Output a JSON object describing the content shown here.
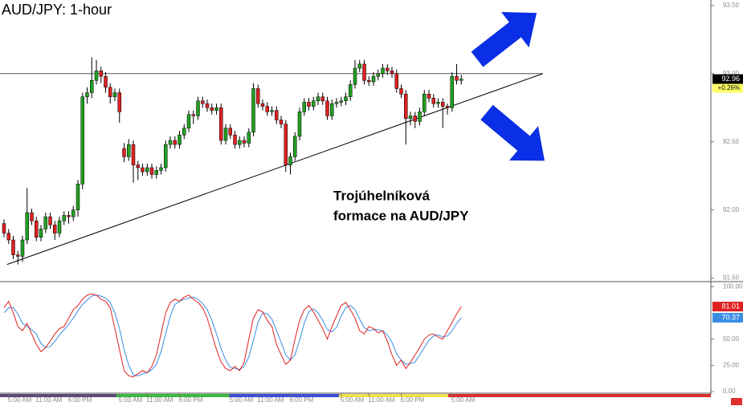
{
  "chart_data": {
    "type": "candlestick",
    "title": "AUD/JPY: 1-hour",
    "annotation": [
      "Trojúhelníková",
      "formace na AUD/JPY"
    ],
    "categories": [
      null,
      "5:00 AM",
      null,
      null,
      null,
      null,
      null,
      "11:00 AM",
      null,
      null,
      null,
      null,
      null,
      null,
      "6:00 PM",
      null,
      null,
      null,
      null,
      null,
      null,
      null,
      null,
      null,
      null,
      "5:00 AM",
      null,
      null,
      null,
      null,
      null,
      "11:00 AM",
      null,
      null,
      null,
      null,
      null,
      null,
      "6:00 PM",
      null,
      null,
      null,
      null,
      null,
      null,
      null,
      null,
      null,
      null,
      "5:00 AM",
      null,
      null,
      null,
      null,
      null,
      "11:00 AM",
      null,
      null,
      null,
      null,
      null,
      null,
      "6:00 PM",
      null,
      null,
      null,
      null,
      null,
      null,
      null,
      null,
      null,
      null,
      "5:00 AM",
      null,
      null,
      null,
      null,
      null,
      "11:00 AM",
      null,
      null,
      null,
      null,
      null,
      null,
      "6:00 PM",
      null,
      null,
      null,
      null,
      null,
      null,
      null,
      null,
      null,
      null,
      "5:00 AM",
      null,
      null
    ],
    "open": [
      91.9,
      91.83,
      91.78,
      91.67,
      91.66,
      91.78,
      91.98,
      91.92,
      91.8,
      91.86,
      91.95,
      91.89,
      91.83,
      91.92,
      91.96,
      91.95,
      92.0,
      92.19,
      92.83,
      92.86,
      92.95,
      93.02,
      92.98,
      92.9,
      92.83,
      92.86,
      92.45,
      92.39,
      92.48,
      92.33,
      92.31,
      92.28,
      92.31,
      92.26,
      92.29,
      92.31,
      92.48,
      92.51,
      92.48,
      92.55,
      92.6,
      92.7,
      92.69,
      92.8,
      92.78,
      92.75,
      92.73,
      92.75,
      92.51,
      92.6,
      92.55,
      92.48,
      92.51,
      92.49,
      92.57,
      92.89,
      92.78,
      92.76,
      92.72,
      92.73,
      92.66,
      92.63,
      92.33,
      92.39,
      92.54,
      92.72,
      92.79,
      92.76,
      92.8,
      92.83,
      92.8,
      92.69,
      92.78,
      92.79,
      92.8,
      92.83,
      92.92,
      93.04,
      93.07,
      92.95,
      92.94,
      92.98,
      93.0,
      93.04,
      93.02,
      93.0,
      92.89,
      92.85,
      92.67,
      92.69,
      92.65,
      92.72,
      92.85,
      92.82,
      92.78,
      92.79,
      92.76,
      92.75,
      92.98,
      92.95
    ],
    "high": [
      91.93,
      91.86,
      91.81,
      91.7,
      91.81,
      92.16,
      92.01,
      91.95,
      91.89,
      91.98,
      91.98,
      91.92,
      91.95,
      91.99,
      91.99,
      92.03,
      92.22,
      92.86,
      92.9,
      93.12,
      93.1,
      93.05,
      93.01,
      92.93,
      92.89,
      92.89,
      92.49,
      92.52,
      92.51,
      92.36,
      92.34,
      92.34,
      92.34,
      92.32,
      92.34,
      92.51,
      92.54,
      92.54,
      92.58,
      92.63,
      92.73,
      92.73,
      92.83,
      92.83,
      92.81,
      92.78,
      92.78,
      92.78,
      92.63,
      92.63,
      92.58,
      92.54,
      92.54,
      92.6,
      92.93,
      92.92,
      92.81,
      92.79,
      92.76,
      92.76,
      92.69,
      92.66,
      92.42,
      92.57,
      92.75,
      92.82,
      92.82,
      92.83,
      92.86,
      92.86,
      92.83,
      92.81,
      92.82,
      92.83,
      92.86,
      92.95,
      93.1,
      93.1,
      93.1,
      92.98,
      93.01,
      93.03,
      93.07,
      93.07,
      93.05,
      93.03,
      92.92,
      92.88,
      92.72,
      92.72,
      92.75,
      92.88,
      92.88,
      92.85,
      92.82,
      92.82,
      92.78,
      93.01,
      93.07,
      92.99
    ],
    "low": [
      91.8,
      91.75,
      91.64,
      91.6,
      91.62,
      91.75,
      91.89,
      91.77,
      91.77,
      91.83,
      91.86,
      91.78,
      91.8,
      91.89,
      91.9,
      91.92,
      91.95,
      92.15,
      92.78,
      92.82,
      92.92,
      92.93,
      92.86,
      92.78,
      92.8,
      92.64,
      92.35,
      92.36,
      92.2,
      92.22,
      92.25,
      92.25,
      92.23,
      92.23,
      92.26,
      92.28,
      92.45,
      92.45,
      92.45,
      92.52,
      92.57,
      92.63,
      92.66,
      92.75,
      92.72,
      92.7,
      92.7,
      92.48,
      92.48,
      92.52,
      92.45,
      92.45,
      92.46,
      92.46,
      92.54,
      92.75,
      92.73,
      92.69,
      92.69,
      92.63,
      92.6,
      92.28,
      92.26,
      92.36,
      92.51,
      92.69,
      92.73,
      92.73,
      92.77,
      92.77,
      92.66,
      92.66,
      92.75,
      92.76,
      92.77,
      92.8,
      92.89,
      93.01,
      92.92,
      92.91,
      92.91,
      92.95,
      92.97,
      92.99,
      92.97,
      92.86,
      92.82,
      92.48,
      92.62,
      92.6,
      92.62,
      92.69,
      92.79,
      92.75,
      92.75,
      92.6,
      92.7,
      92.72,
      92.92,
      92.92
    ],
    "close": [
      91.83,
      91.78,
      91.67,
      91.66,
      91.78,
      91.98,
      91.92,
      91.8,
      91.86,
      91.95,
      91.89,
      91.83,
      91.92,
      91.96,
      91.95,
      92.0,
      92.19,
      92.83,
      92.86,
      92.95,
      93.02,
      92.98,
      92.9,
      92.83,
      92.86,
      92.72,
      92.39,
      92.48,
      92.33,
      92.31,
      92.28,
      92.31,
      92.26,
      92.29,
      92.31,
      92.48,
      92.51,
      92.48,
      92.55,
      92.6,
      92.7,
      92.69,
      92.8,
      92.78,
      92.75,
      92.73,
      92.75,
      92.51,
      92.6,
      92.55,
      92.48,
      92.51,
      92.49,
      92.57,
      92.89,
      92.78,
      92.76,
      92.72,
      92.73,
      92.66,
      92.63,
      92.33,
      92.39,
      92.54,
      92.72,
      92.79,
      92.76,
      92.8,
      92.83,
      92.8,
      92.69,
      92.78,
      92.79,
      92.8,
      92.83,
      92.92,
      93.04,
      93.07,
      92.95,
      92.94,
      92.98,
      93.0,
      93.04,
      93.02,
      93.0,
      92.89,
      92.85,
      92.67,
      92.69,
      92.65,
      92.72,
      92.85,
      92.82,
      92.78,
      92.79,
      92.76,
      92.75,
      92.98,
      92.95,
      92.96
    ],
    "up_color": "#22a022",
    "down_color": "#e02020",
    "ylim": [
      91.48,
      93.54
    ],
    "yticks": [
      {
        "value": 93.5,
        "label": "93.50"
      },
      {
        "value": 93.0,
        "label": "93.00"
      },
      {
        "value": 92.5,
        "label": "92.50"
      },
      {
        "value": 92.0,
        "label": "92.00"
      },
      {
        "value": 91.5,
        "label": "91.50"
      }
    ],
    "change_label": "+0.26%",
    "resistance": 93.0,
    "trendline_index": [
      1,
      117
    ],
    "trendline_price": [
      91.6,
      93.0
    ],
    "oscillator": {
      "ylim": [
        -3,
        104
      ],
      "yticks": [
        {
          "value": 100,
          "label": "100.00"
        },
        {
          "value": 50,
          "label": "50.00"
        },
        {
          "value": 25,
          "label": "25.00"
        },
        {
          "value": 0,
          "label": "0.00"
        }
      ],
      "series": [
        {
          "color": "#e02020",
          "values": [
            80,
            86,
            75,
            62,
            58,
            65,
            55,
            45,
            38,
            42,
            48,
            55,
            60,
            62,
            70,
            78,
            82,
            88,
            92,
            93,
            92,
            88,
            86,
            80,
            60,
            40,
            20,
            15,
            14,
            17,
            20,
            18,
            24,
            35,
            55,
            75,
            85,
            88,
            86,
            90,
            92,
            88,
            85,
            80,
            70,
            55,
            40,
            28,
            22,
            20,
            24,
            20,
            28,
            50,
            70,
            78,
            76,
            68,
            62,
            45,
            35,
            26,
            30,
            50,
            68,
            78,
            82,
            76,
            68,
            60,
            50,
            62,
            72,
            82,
            85,
            78,
            70,
            58,
            55,
            62,
            60,
            56,
            58,
            48,
            35,
            25,
            30,
            22,
            28,
            35,
            42,
            50,
            54,
            55,
            52,
            50,
            58,
            66,
            74,
            81.01
          ]
        },
        {
          "color": "#3a8ee6",
          "values": [
            75,
            80,
            80,
            74,
            65,
            62,
            59,
            55,
            46,
            42,
            43,
            48,
            54,
            59,
            64,
            70,
            77,
            83,
            87,
            91,
            92,
            91,
            89,
            85,
            75,
            60,
            40,
            25,
            16,
            15,
            17,
            18,
            21,
            26,
            38,
            55,
            72,
            83,
            86,
            88,
            89,
            90,
            88,
            84,
            78,
            68,
            55,
            41,
            30,
            23,
            22,
            21,
            24,
            33,
            49,
            66,
            75,
            74,
            69,
            58,
            47,
            35,
            30,
            35,
            49,
            65,
            76,
            79,
            75,
            68,
            59,
            57,
            61,
            72,
            80,
            82,
            78,
            69,
            61,
            58,
            59,
            59,
            58,
            54,
            47,
            36,
            30,
            26,
            27,
            28,
            35,
            42,
            49,
            53,
            54,
            52,
            53,
            58,
            65,
            70.37
          ]
        }
      ]
    }
  }
}
